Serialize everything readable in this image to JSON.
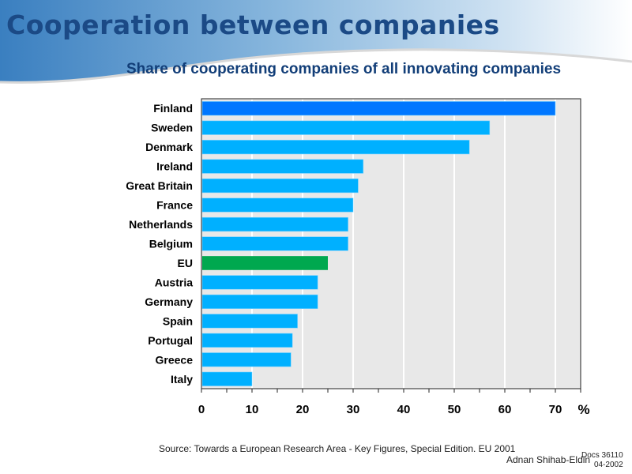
{
  "header": {
    "title": "Cooperation between companies",
    "subtitle": "Share of cooperating companies of all innovating companies"
  },
  "colors": {
    "bar_default": "#00b0ff",
    "bar_top": "#0077ff",
    "bar_eu": "#00a84f",
    "plot_bg": "#e8e8e8",
    "grid": "#ffffff",
    "title": "#1b4a86"
  },
  "chart_data": {
    "type": "bar",
    "orientation": "horizontal",
    "title": "Share of cooperating companies of all innovating companies",
    "xlabel": "%",
    "ylabel": "",
    "categories": [
      "Finland",
      "Sweden",
      "Denmark",
      "Ireland",
      "Great Britain",
      "France",
      "Netherlands",
      "Belgium",
      "EU",
      "Austria",
      "Germany",
      "Spain",
      "Portugal",
      "Greece",
      "Italy"
    ],
    "values": [
      70,
      57,
      53,
      32,
      31,
      30,
      29,
      29,
      25,
      23,
      23,
      19,
      18,
      17.7,
      10
    ],
    "highlight": {
      "Finland": "top",
      "EU": "eu"
    },
    "xlim": [
      0,
      75
    ],
    "xticks": [
      0,
      10,
      20,
      30,
      40,
      50,
      60,
      70
    ],
    "xtick_labels": [
      "0",
      "10",
      "20",
      "30",
      "40",
      "50",
      "60",
      "70"
    ],
    "grid": true,
    "legend": "none"
  },
  "footer": {
    "source": "Source: Towards a European Research Area - Key Figures, Special Edition. EU 2001",
    "author": "Adnan Shihab-Eldin",
    "doc_ref_line1": "Docs 36110",
    "doc_ref_line2": "04-2002"
  }
}
